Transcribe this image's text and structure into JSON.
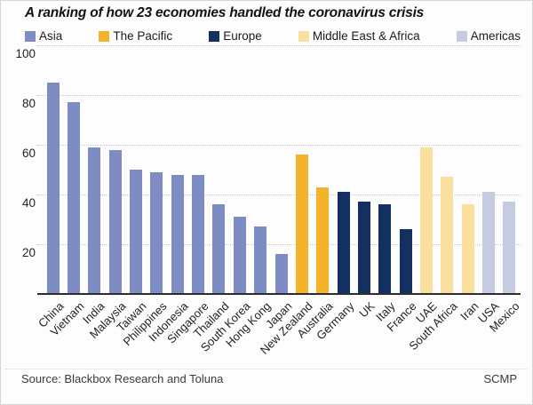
{
  "title": "A ranking of how 23 economies handled the coronavirus crisis",
  "legend": {
    "items": [
      {
        "label": "Asia",
        "color": "#7D8CC3"
      },
      {
        "label": "The Pacific",
        "color": "#F5B22B"
      },
      {
        "label": "Europe",
        "color": "#143060"
      },
      {
        "label": "Middle East & Africa",
        "color": "#FADF9F"
      },
      {
        "label": "Americas",
        "color": "#C5CCE2"
      }
    ]
  },
  "chart_data": {
    "type": "bar",
    "title": "A ranking of how 23 economies handled the coronavirus crisis",
    "categories": [
      "China",
      "Vietnam",
      "India",
      "Malaysia",
      "Taiwan",
      "Philippines",
      "Indonesia",
      "Singapore",
      "Thailand",
      "South Korea",
      "Hong Kong",
      "Japan",
      "New Zealand",
      "Australia",
      "Germany",
      "UK",
      "Italy",
      "France",
      "UAE",
      "South Africa",
      "Iran",
      "USA",
      "Mexico"
    ],
    "values": [
      85,
      77,
      59,
      58,
      50,
      49,
      48,
      48,
      36,
      31,
      27,
      16,
      56,
      43,
      41,
      37,
      36,
      26,
      59,
      47,
      36,
      41,
      37
    ],
    "bar_regions": [
      "Asia",
      "Asia",
      "Asia",
      "Asia",
      "Asia",
      "Asia",
      "Asia",
      "Asia",
      "Asia",
      "Asia",
      "Asia",
      "Asia",
      "The Pacific",
      "The Pacific",
      "Europe",
      "Europe",
      "Europe",
      "Europe",
      "Middle East & Africa",
      "Middle East & Africa",
      "Middle East & Africa",
      "Americas",
      "Americas"
    ],
    "region_colors": {
      "Asia": "#7D8CC3",
      "The Pacific": "#F5B22B",
      "Europe": "#143060",
      "Middle East & Africa": "#FADF9F",
      "Americas": "#C5CCE2"
    },
    "xlabel": "",
    "ylabel": "",
    "ylim": [
      0,
      100
    ],
    "yticks": [
      20,
      40,
      60,
      80,
      100
    ],
    "grid": "horizontal-dotted",
    "legend_position": "top"
  },
  "footer": {
    "source": "Source: Blackbox Research and Toluna",
    "credit": "SCMP"
  }
}
